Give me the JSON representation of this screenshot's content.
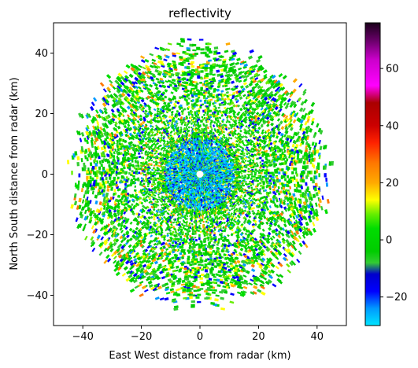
{
  "chart_data": {
    "type": "heatmap",
    "title": "reflectivity",
    "xlabel": "East West distance from radar (km)",
    "ylabel": "North South distance from radar (km)",
    "xlim": [
      -50,
      50
    ],
    "ylim": [
      -50,
      50
    ],
    "x_ticks": [
      -40,
      -20,
      0,
      20,
      40
    ],
    "y_ticks": [
      -40,
      -20,
      0,
      20,
      40
    ],
    "grid": false,
    "radar_max_range_km": 45,
    "colorbar": {
      "range": [
        -30,
        76
      ],
      "ticks": [
        -20,
        0,
        20,
        40,
        60
      ],
      "stops": [
        {
          "value": -30,
          "color": "#00e5ff"
        },
        {
          "value": -24,
          "color": "#0099ff"
        },
        {
          "value": -18,
          "color": "#0000ff"
        },
        {
          "value": -12,
          "color": "#0000cc"
        },
        {
          "value": -8,
          "color": "#33cc33"
        },
        {
          "value": -4,
          "color": "#00cc00"
        },
        {
          "value": 4,
          "color": "#00dd00"
        },
        {
          "value": 9,
          "color": "#66ee00"
        },
        {
          "value": 14,
          "color": "#ffff00"
        },
        {
          "value": 20,
          "color": "#ffaa00"
        },
        {
          "value": 27,
          "color": "#ff7700"
        },
        {
          "value": 34,
          "color": "#ff2200"
        },
        {
          "value": 40,
          "color": "#cc0000"
        },
        {
          "value": 48,
          "color": "#aa0000"
        },
        {
          "value": 54,
          "color": "#ff00ff"
        },
        {
          "value": 63,
          "color": "#cc00cc"
        },
        {
          "value": 70,
          "color": "#660066"
        },
        {
          "value": 76,
          "color": "#1a001a"
        }
      ]
    }
  }
}
